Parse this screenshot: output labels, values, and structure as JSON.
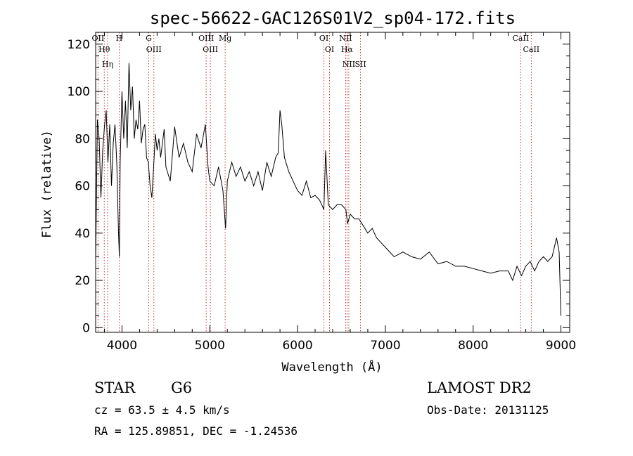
{
  "chart_data": {
    "type": "line",
    "title": "spec-56622-GAC126S01V2_sp04-172.fits",
    "xlabel": "Wavelength (Å)",
    "ylabel": "Flux (relative)",
    "xlim": [
      3700,
      9100
    ],
    "ylim": [
      -2,
      125
    ],
    "x_ticks": [
      4000,
      5000,
      6000,
      7000,
      8000,
      9000
    ],
    "y_ticks": [
      0,
      20,
      40,
      60,
      80,
      100,
      120
    ],
    "grid": false,
    "spectrum": {
      "x": [
        3700,
        3720,
        3740,
        3760,
        3780,
        3800,
        3820,
        3840,
        3860,
        3880,
        3900,
        3920,
        3940,
        3960,
        3970,
        3980,
        4000,
        4020,
        4040,
        4060,
        4080,
        4100,
        4120,
        4140,
        4160,
        4180,
        4200,
        4220,
        4240,
        4260,
        4280,
        4300,
        4320,
        4340,
        4360,
        4380,
        4400,
        4420,
        4440,
        4460,
        4480,
        4500,
        4550,
        4600,
        4650,
        4700,
        4750,
        4800,
        4850,
        4900,
        4950,
        4980,
        5000,
        5050,
        5100,
        5150,
        5180,
        5200,
        5250,
        5300,
        5350,
        5400,
        5450,
        5500,
        5550,
        5600,
        5650,
        5700,
        5750,
        5780,
        5800,
        5820,
        5850,
        5900,
        5950,
        6000,
        6050,
        6100,
        6150,
        6200,
        6250,
        6300,
        6320,
        6350,
        6400,
        6450,
        6500,
        6550,
        6570,
        6600,
        6650,
        6700,
        6750,
        6800,
        6850,
        6900,
        6950,
        7000,
        7100,
        7200,
        7300,
        7400,
        7500,
        7600,
        7700,
        7800,
        7900,
        8000,
        8100,
        8200,
        8300,
        8400,
        8450,
        8500,
        8550,
        8600,
        8650,
        8700,
        8750,
        8800,
        8850,
        8900,
        8950,
        8980,
        9000
      ],
      "y": [
        28,
        88,
        80,
        55,
        75,
        85,
        92,
        70,
        86,
        60,
        78,
        86,
        70,
        40,
        30,
        70,
        100,
        80,
        96,
        76,
        112,
        92,
        102,
        80,
        88,
        84,
        96,
        78,
        84,
        86,
        72,
        70,
        60,
        55,
        68,
        82,
        75,
        80,
        72,
        78,
        84,
        68,
        62,
        85,
        72,
        78,
        70,
        66,
        82,
        76,
        86,
        68,
        62,
        60,
        68,
        58,
        42,
        62,
        70,
        64,
        68,
        62,
        66,
        60,
        66,
        58,
        70,
        64,
        72,
        74,
        92,
        86,
        72,
        66,
        62,
        58,
        56,
        62,
        55,
        56,
        54,
        50,
        75,
        52,
        50,
        52,
        52,
        50,
        44,
        48,
        46,
        46,
        43,
        40,
        42,
        38,
        36,
        34,
        30,
        32,
        30,
        29,
        32,
        27,
        28,
        26,
        26,
        25,
        24,
        23,
        24,
        24,
        20,
        26,
        22,
        26,
        28,
        24,
        28,
        30,
        28,
        30,
        38,
        32,
        5
      ]
    },
    "spectral_lines": [
      {
        "name": "OII",
        "x": 3727
      },
      {
        "name": "Hθ",
        "x": 3798
      },
      {
        "name": "Hη",
        "x": 3836
      },
      {
        "name": "H",
        "x": 3968
      },
      {
        "name": "G",
        "x": 4305
      },
      {
        "name": "OIII",
        "x": 4363
      },
      {
        "name": "OIII",
        "x": 4959
      },
      {
        "name": "OIII",
        "x": 5007
      },
      {
        "name": "Mg",
        "x": 5175
      },
      {
        "name": "OI",
        "x": 6300
      },
      {
        "name": "OI",
        "x": 6364
      },
      {
        "name": "NII",
        "x": 6548
      },
      {
        "name": "Hα",
        "x": 6563
      },
      {
        "name": "NII",
        "x": 6584
      },
      {
        "name": "SII",
        "x": 6717
      },
      {
        "name": "CaII",
        "x": 8542
      },
      {
        "name": "CaII",
        "x": 8662
      }
    ]
  },
  "info": {
    "class": "STAR",
    "subclass": "G6",
    "survey": "LAMOST DR2",
    "redshift": "cz = 63.5 ± 4.5 km/s",
    "obs_date": "Obs-Date: 20131125",
    "coords": "RA = 125.89851, DEC =  -1.24536"
  }
}
